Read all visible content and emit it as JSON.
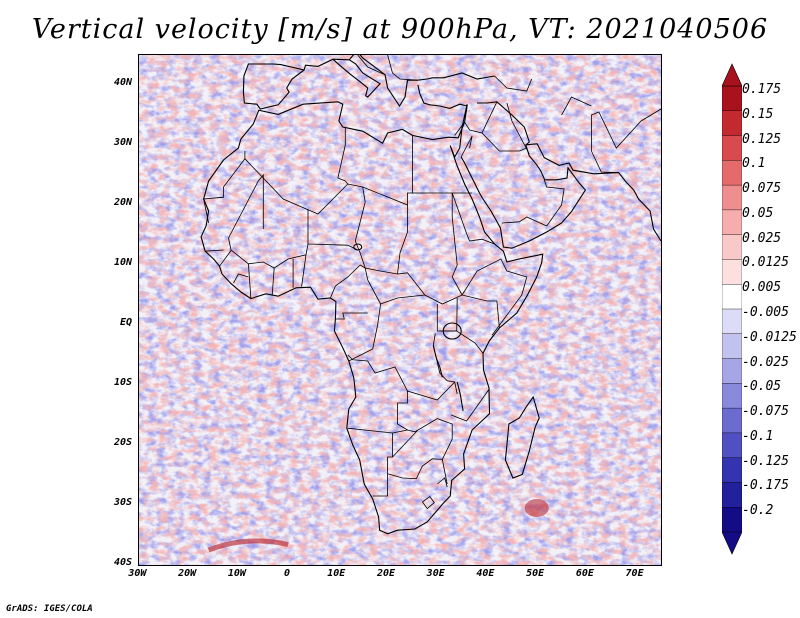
{
  "title": "Vertical velocity [m/s] at 900hPa, VT: 2021040506",
  "credit": "GrADS: IGES/COLA",
  "map": {
    "lon_range": [
      -30,
      75
    ],
    "lat_range": [
      -40,
      45
    ],
    "lat_labels": [
      {
        "text": "40N",
        "lat": 40
      },
      {
        "text": "30N",
        "lat": 30
      },
      {
        "text": "20N",
        "lat": 20
      },
      {
        "text": "10N",
        "lat": 10
      },
      {
        "text": "EQ",
        "lat": 0
      },
      {
        "text": "10S",
        "lat": -10
      },
      {
        "text": "20S",
        "lat": -20
      },
      {
        "text": "30S",
        "lat": -30
      },
      {
        "text": "40S",
        "lat": -40
      }
    ],
    "lon_labels": [
      {
        "text": "30W",
        "lon": -30
      },
      {
        "text": "20W",
        "lon": -20
      },
      {
        "text": "10W",
        "lon": -10
      },
      {
        "text": "0",
        "lon": 0
      },
      {
        "text": "10E",
        "lon": 10
      },
      {
        "text": "20E",
        "lon": 20
      },
      {
        "text": "30E",
        "lon": 30
      },
      {
        "text": "40E",
        "lon": 40
      },
      {
        "text": "50E",
        "lon": 50
      },
      {
        "text": "60E",
        "lon": 60
      },
      {
        "text": "70E",
        "lon": 70
      }
    ]
  },
  "colorbar": {
    "labels": [
      "0.175",
      "0.15",
      "0.125",
      "0.1",
      "0.075",
      "0.05",
      "0.025",
      "0.0125",
      "0.005",
      "-0.005",
      "-0.0125",
      "-0.025",
      "-0.05",
      "-0.075",
      "-0.1",
      "-0.125",
      "-0.175",
      "-0.2"
    ],
    "colors": [
      "#a8121c",
      "#c22a30",
      "#d84a4e",
      "#e46a6c",
      "#ee8e8e",
      "#f5adad",
      "#f9c8c8",
      "#fce0e0",
      "#ffffff",
      "#dcdcf6",
      "#c2c2ef",
      "#a6a6e6",
      "#8a8adc",
      "#6c6cd0",
      "#5050c2",
      "#3434b0",
      "#22209a",
      "#140c86"
    ]
  }
}
